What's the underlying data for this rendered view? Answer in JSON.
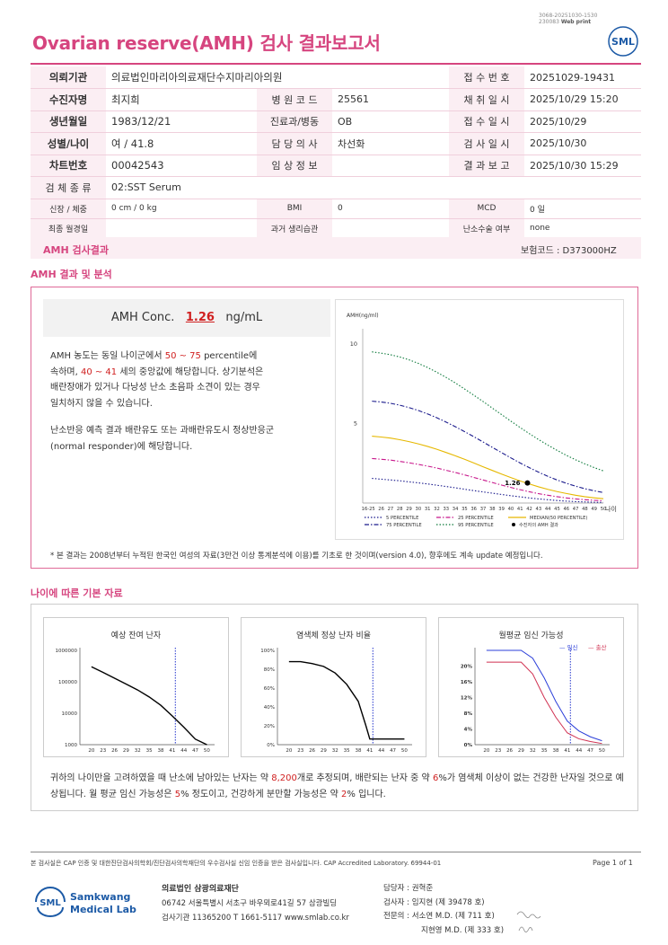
{
  "header": {
    "top_code_line1": "3068-20251030-1530",
    "top_code_line2": "230083",
    "top_code_print": "Web print",
    "title": "Ovarian reserve(AMH) 검사 결과보고서",
    "logo_text": "SML"
  },
  "info": {
    "rows": [
      [
        {
          "l": "의뢰기관",
          "v": "의료법인마리아의료재단수지마리아의원",
          "strong": true
        },
        {
          "l": "접 수 번 호",
          "v": "20251029-19431"
        }
      ],
      [
        {
          "l": "수진자명",
          "v": "최지희",
          "strong": true
        },
        {
          "l": "병 원 코 드",
          "v": "25561"
        },
        {
          "l": "채 취 일 시",
          "v": "2025/10/29 15:20"
        }
      ],
      [
        {
          "l": "생년월일",
          "v": "1983/12/21",
          "strong": true
        },
        {
          "l": "진료과/병동",
          "v": "OB"
        },
        {
          "l": "접 수 일 시",
          "v": "2025/10/29"
        }
      ],
      [
        {
          "l": "성별/나이",
          "v": "여 / 41.8",
          "strong": true
        },
        {
          "l": "담 당 의 사",
          "v": "차선화"
        },
        {
          "l": "검 사 일 시",
          "v": "2025/10/30"
        }
      ],
      [
        {
          "l": "차트번호",
          "v": "00042543",
          "strong": true
        },
        {
          "l": "임 상 정 보",
          "v": ""
        },
        {
          "l": "결 과 보 고",
          "v": "2025/10/30 15:29"
        }
      ]
    ],
    "specimen_label": "검 체 종 류",
    "specimen_value": "02:SST Serum",
    "height_weight_label": "신장 / 체중",
    "height_weight_value": "0 cm / 0 kg",
    "bmi_label": "BMI",
    "bmi_value": "0",
    "mcd_label": "MCD",
    "mcd_value": "0 일",
    "last_period_label": "최종 월경일",
    "last_period_value": "",
    "history_label": "과거 생리습관",
    "history_value": "",
    "surgery_label": "난소수술 여부",
    "surgery_value": "none"
  },
  "result_bar": {
    "title": "AMH 검사결과",
    "insurance_code": "보험코드 : D373000HZ"
  },
  "analysis": {
    "section_title": "AMH 결과 및 분석",
    "conc_label": "AMH Conc.",
    "conc_value": "1.26",
    "conc_unit": "ng/mL",
    "desc_p1a": "AMH 농도는 동일 나이군에서 ",
    "desc_p1_range": "50 ~ 75",
    "desc_p1b": " percentile에 속하며, ",
    "desc_p1_age": "40 ~ 41",
    "desc_p1c": " 세의 중앙값에 해당합니다. 상기분석은 배란장애가 있거나 다낭성 난소 초음파 소견이 있는 경우 일치하지 않을 수 있습니다.",
    "desc_p2": "난소반응 예측 결과 배란유도 또는 과배란유도시 정상반응군 (normal responder)에 해당합니다.",
    "footnote": "* 본 결과는 2008년부터 누적된 한국인 여성의 자료(3만건 이상 통계분석에 이용)를 기초로 한 것이며(version 4.0), 향후에도 계속 update 예정입니다."
  },
  "chart_data": [
    {
      "type": "line",
      "ylabel": "AMH(ng/ml)",
      "xlabel": "나이",
      "x_ticks": [
        "16-25",
        "26",
        "27",
        "28",
        "29",
        "30",
        "31",
        "32",
        "33",
        "34",
        "35",
        "36",
        "37",
        "38",
        "39",
        "40",
        "41",
        "42",
        "43",
        "44",
        "45",
        "46",
        "47",
        "48",
        "49",
        "50"
      ],
      "y_ticks": [
        5,
        10
      ],
      "ylim": [
        0,
        10.5
      ],
      "x": [
        25,
        26,
        27,
        28,
        29,
        30,
        31,
        32,
        33,
        34,
        35,
        36,
        37,
        38,
        39,
        40,
        41,
        42,
        43,
        44,
        45,
        46,
        47,
        48,
        49,
        50
      ],
      "series": [
        {
          "name": "5 PERCENTILE",
          "color": "#1a1a8c",
          "style": "dotted",
          "values": [
            1.55,
            1.5,
            1.45,
            1.4,
            1.33,
            1.27,
            1.2,
            1.12,
            1.04,
            0.96,
            0.87,
            0.78,
            0.7,
            0.62,
            0.54,
            0.46,
            0.39,
            0.32,
            0.26,
            0.21,
            0.16,
            0.12,
            0.09,
            0.07,
            0.05,
            0.04
          ]
        },
        {
          "name": "25 PERCENTILE",
          "color": "#c8188c",
          "style": "dashdot",
          "values": [
            2.8,
            2.75,
            2.7,
            2.62,
            2.53,
            2.43,
            2.32,
            2.2,
            2.06,
            1.92,
            1.77,
            1.61,
            1.45,
            1.29,
            1.13,
            0.98,
            0.84,
            0.71,
            0.59,
            0.49,
            0.4,
            0.32,
            0.26,
            0.21,
            0.17,
            0.14
          ]
        },
        {
          "name": "MEDIAN(50 PERCENTILE)",
          "color": "#e6b800",
          "style": "solid",
          "values": [
            4.2,
            4.15,
            4.08,
            3.98,
            3.86,
            3.72,
            3.56,
            3.38,
            3.18,
            2.97,
            2.75,
            2.52,
            2.28,
            2.05,
            1.82,
            1.6,
            1.39,
            1.2,
            1.02,
            0.86,
            0.72,
            0.6,
            0.49,
            0.4,
            0.33,
            0.27
          ]
        },
        {
          "name": "75 PERCENTILE",
          "color": "#1a1a8c",
          "style": "dashdot",
          "values": [
            6.4,
            6.35,
            6.27,
            6.15,
            6.0,
            5.82,
            5.6,
            5.36,
            5.09,
            4.8,
            4.49,
            4.17,
            3.84,
            3.5,
            3.17,
            2.84,
            2.52,
            2.22,
            1.94,
            1.68,
            1.45,
            1.24,
            1.06,
            0.9,
            0.77,
            0.66
          ]
        },
        {
          "name": "95 PERCENTILE",
          "color": "#0e7a3c",
          "style": "dotted",
          "values": [
            9.5,
            9.42,
            9.32,
            9.18,
            9.0,
            8.78,
            8.52,
            8.22,
            7.9,
            7.55,
            7.17,
            6.78,
            6.38,
            5.97,
            5.56,
            5.15,
            4.75,
            4.36,
            3.99,
            3.64,
            3.31,
            3.0,
            2.72,
            2.46,
            2.23,
            2.02
          ]
        }
      ],
      "patient_point": {
        "label": "1.26",
        "legend": "수진자의 AMH 결과",
        "x": 41.8,
        "y": 1.26
      }
    },
    {
      "type": "line",
      "title": "예상 잔여 난자",
      "x_ticks": [
        20,
        23,
        26,
        29,
        32,
        35,
        38,
        41,
        44,
        47,
        50
      ],
      "y_ticks": [
        "1000",
        "10000",
        "100000",
        "1000000"
      ],
      "yscale": "log",
      "ylim": [
        1000,
        1000000
      ],
      "x": [
        20,
        23,
        26,
        29,
        32,
        35,
        38,
        41,
        44,
        47,
        50
      ],
      "values": [
        300000,
        200000,
        130000,
        85000,
        55000,
        33000,
        18000,
        8200,
        3600,
        1500,
        1000
      ],
      "marker_x": 41.8
    },
    {
      "type": "line",
      "title": "염색체 정상 난자 비율",
      "x_ticks": [
        20,
        23,
        26,
        29,
        32,
        35,
        38,
        41,
        44,
        47,
        50
      ],
      "y_ticks": [
        "0%",
        "20%",
        "40%",
        "60%",
        "80%",
        "100%"
      ],
      "ylim": [
        0,
        100
      ],
      "x": [
        20,
        23,
        26,
        29,
        32,
        35,
        38,
        40,
        41,
        42,
        44,
        47,
        50
      ],
      "values": [
        88,
        88,
        86,
        83,
        76,
        64,
        46,
        20,
        6,
        6,
        6,
        6,
        6
      ],
      "marker_x": 41.8
    },
    {
      "type": "line",
      "title": "월평균 임신 가능성",
      "legend": [
        "임신",
        "출산"
      ],
      "x_ticks": [
        20,
        23,
        26,
        29,
        32,
        35,
        38,
        41,
        44,
        47,
        50
      ],
      "y_ticks": [
        "0%",
        "4%",
        "8%",
        "12%",
        "16%",
        "20%"
      ],
      "ylim": [
        0,
        24
      ],
      "x": [
        20,
        23,
        26,
        29,
        32,
        35,
        38,
        41,
        44,
        47,
        50
      ],
      "series": [
        {
          "name": "임신",
          "color": "#2b3fd9",
          "values": [
            24,
            24,
            24,
            24,
            22,
            17,
            11,
            6,
            3.5,
            2,
            1
          ]
        },
        {
          "name": "출산",
          "color": "#d03050",
          "values": [
            21,
            21,
            21,
            21,
            18,
            12,
            7,
            3,
            1.5,
            0.8,
            0.3
          ]
        }
      ],
      "marker_x": 41.8
    }
  ],
  "age_section": {
    "section_title": "나이에 따른 기본 자료",
    "summary_a": "귀하의 나이만을 고려하였을 때 난소에 남아있는 난자는 약 ",
    "summary_eggs": "8,200",
    "summary_b": "개로 추정되며, 배란되는 난자 중 약 ",
    "summary_pct": "6",
    "summary_c": "%가 염색체 이상이 없는 건강한 난자일 것으로 예상됩니다. 월 평균 임신 가능성은 ",
    "summary_preg": "5",
    "summary_d": "% 정도이고, 건강하게 분만할 가능성은 약 ",
    "summary_birth": "2",
    "summary_e": "% 입니다."
  },
  "footer": {
    "note": "본 검사실은 CAP 인증 및 대한진단검사의학회/진단검사의학재단의 우수검사실 신임 인증을 받은 검사실입니다.  CAP Accredited Laboratory. 69944-01",
    "page": "Page 1 of 1",
    "logo_line1": "Samkwang",
    "logo_line2": "Medical Lab",
    "org_name": "의료법인 삼광의료재단",
    "org_addr": "06742 서울특별시 서초구 바우뫼로41길 57 삼광빌딩",
    "org_contact": "검사기관 11365200  T 1661-5117  www.smlab.co.kr",
    "staff_manager": "담당자 :  권혁준",
    "staff_tester": "검사자 :  임지현 (제 39478 호)",
    "staff_spec1": "전문의 :  서소연 M.D. (제 711 호)",
    "staff_spec2": "지현영 M.D. (제 333 호)"
  }
}
